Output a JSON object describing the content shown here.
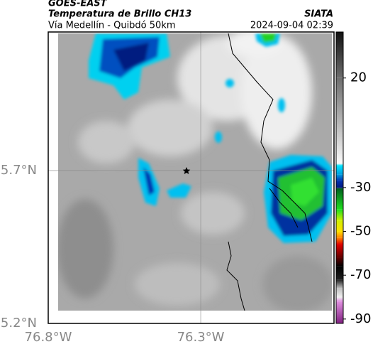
{
  "header": {
    "title": "GOES-EAST",
    "subtitle": "Temperatura de Brillo CH13",
    "route": "Vía Medellín - Quibdó 50km",
    "source": "SIATA",
    "timestamp": "2024-09-04 02:39"
  },
  "map": {
    "xlim": [
      -76.8,
      -75.863
    ],
    "ylim": [
      5.2,
      6.153
    ],
    "xticks": [
      {
        "value": -76.8,
        "label": "76.8°W"
      },
      {
        "value": -76.3,
        "label": "76.3°W"
      }
    ],
    "yticks": [
      {
        "value": 5.2,
        "label": "5.2°N"
      },
      {
        "value": 5.7,
        "label": "5.7°N"
      }
    ],
    "grid": true
  },
  "colorbar": {
    "lim": [
      -92,
      41
    ],
    "ticks": [
      20,
      -30,
      -50,
      -70,
      -90
    ],
    "colors": [
      {
        "value": 41,
        "color": "#111111"
      },
      {
        "value": 20,
        "color": "#6e6e6e"
      },
      {
        "value": -19,
        "color": "#fafafa"
      },
      {
        "value": -20,
        "color": "#00e5ff"
      },
      {
        "value": -24,
        "color": "#00a0e0"
      },
      {
        "value": -27,
        "color": "#0030b0"
      },
      {
        "value": -30,
        "color": "#001a80"
      },
      {
        "value": -30.5,
        "color": "#006020"
      },
      {
        "value": -40,
        "color": "#20e020"
      },
      {
        "value": -45,
        "color": "#d0f000"
      },
      {
        "value": -50,
        "color": "#ffe000"
      },
      {
        "value": -53,
        "color": "#ff8000"
      },
      {
        "value": -56,
        "color": "#e00000"
      },
      {
        "value": -62,
        "color": "#600000"
      },
      {
        "value": -66,
        "color": "#000000"
      },
      {
        "value": -72,
        "color": "#202020"
      },
      {
        "value": -76,
        "color": "#c0c0c0"
      },
      {
        "value": -80,
        "color": "#f0f0f0"
      },
      {
        "value": -82,
        "color": "#e090e0"
      },
      {
        "value": -92,
        "color": "#802080"
      }
    ]
  }
}
